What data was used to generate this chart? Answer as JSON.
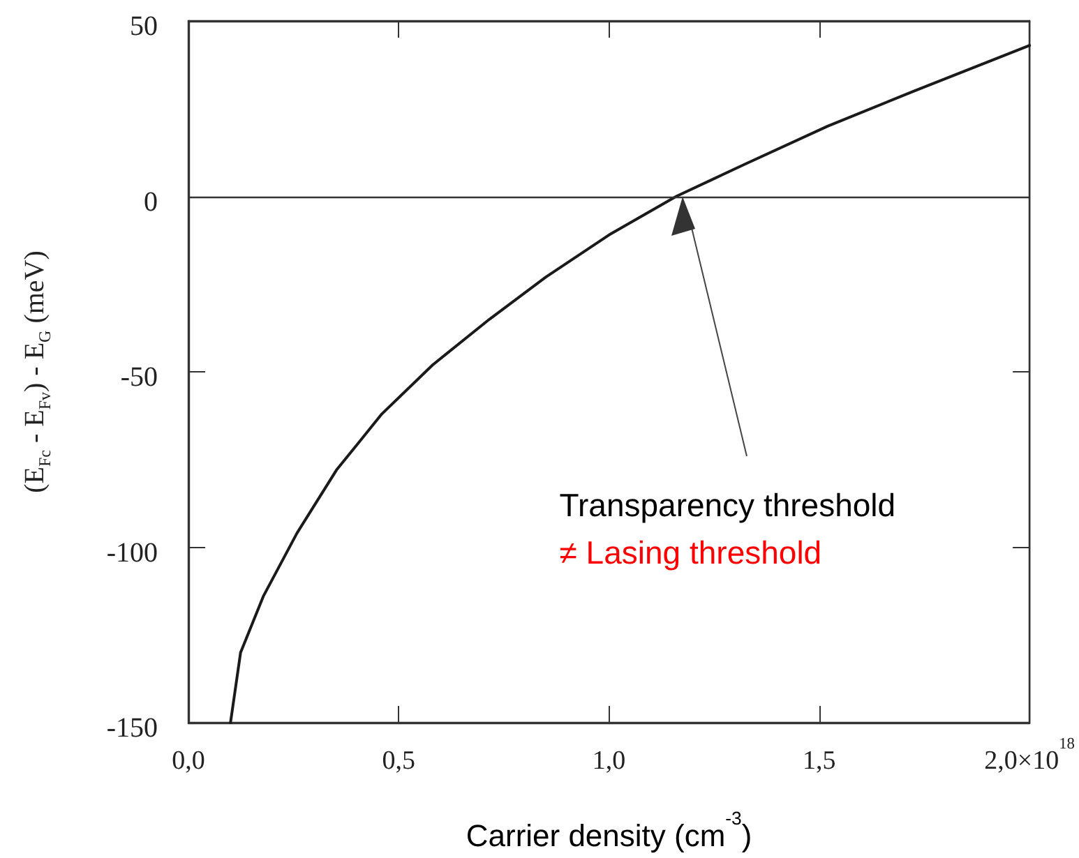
{
  "chart_data": {
    "type": "line",
    "xlabel": "Carrier density (cm$^{-3}$)",
    "ylabel": "(E$_{Fc}$ - E$_{Fv}$) - E$_{G}$ (meV)",
    "x": [
      0.1,
      0.124,
      0.178,
      0.258,
      0.352,
      0.46,
      0.581,
      0.716,
      0.85,
      1.0,
      1.16,
      1.32,
      1.52,
      1.725,
      2.0
    ],
    "series": [
      {
        "color": "#1a1a1a",
        "values": [
          -150,
          -130,
          -114,
          -96,
          -78,
          -62,
          -48,
          -35,
          -23,
          -11,
          0,
          9,
          20,
          30,
          43
        ]
      }
    ],
    "xlim": [
      0,
      2
    ],
    "ylim": [
      -150,
      50
    ],
    "xticks": [
      {
        "value": 0,
        "label": "0,0"
      },
      {
        "value": 0.5,
        "label": "0,5"
      },
      {
        "value": 1,
        "label": "1,0"
      },
      {
        "value": 1.5,
        "label": "1,5"
      },
      {
        "value": 2,
        "label": "2,0×10$^{18}$"
      }
    ],
    "yticks": [
      -150,
      -100,
      -50,
      0,
      50
    ],
    "ref_lines": [
      {
        "axis": "y",
        "value": 0,
        "color": "#333333"
      }
    ],
    "annotations": [
      "Transparency threshold",
      "≠ Lasing threshold"
    ],
    "grid": false,
    "marker": "none",
    "line_style": "solid"
  }
}
